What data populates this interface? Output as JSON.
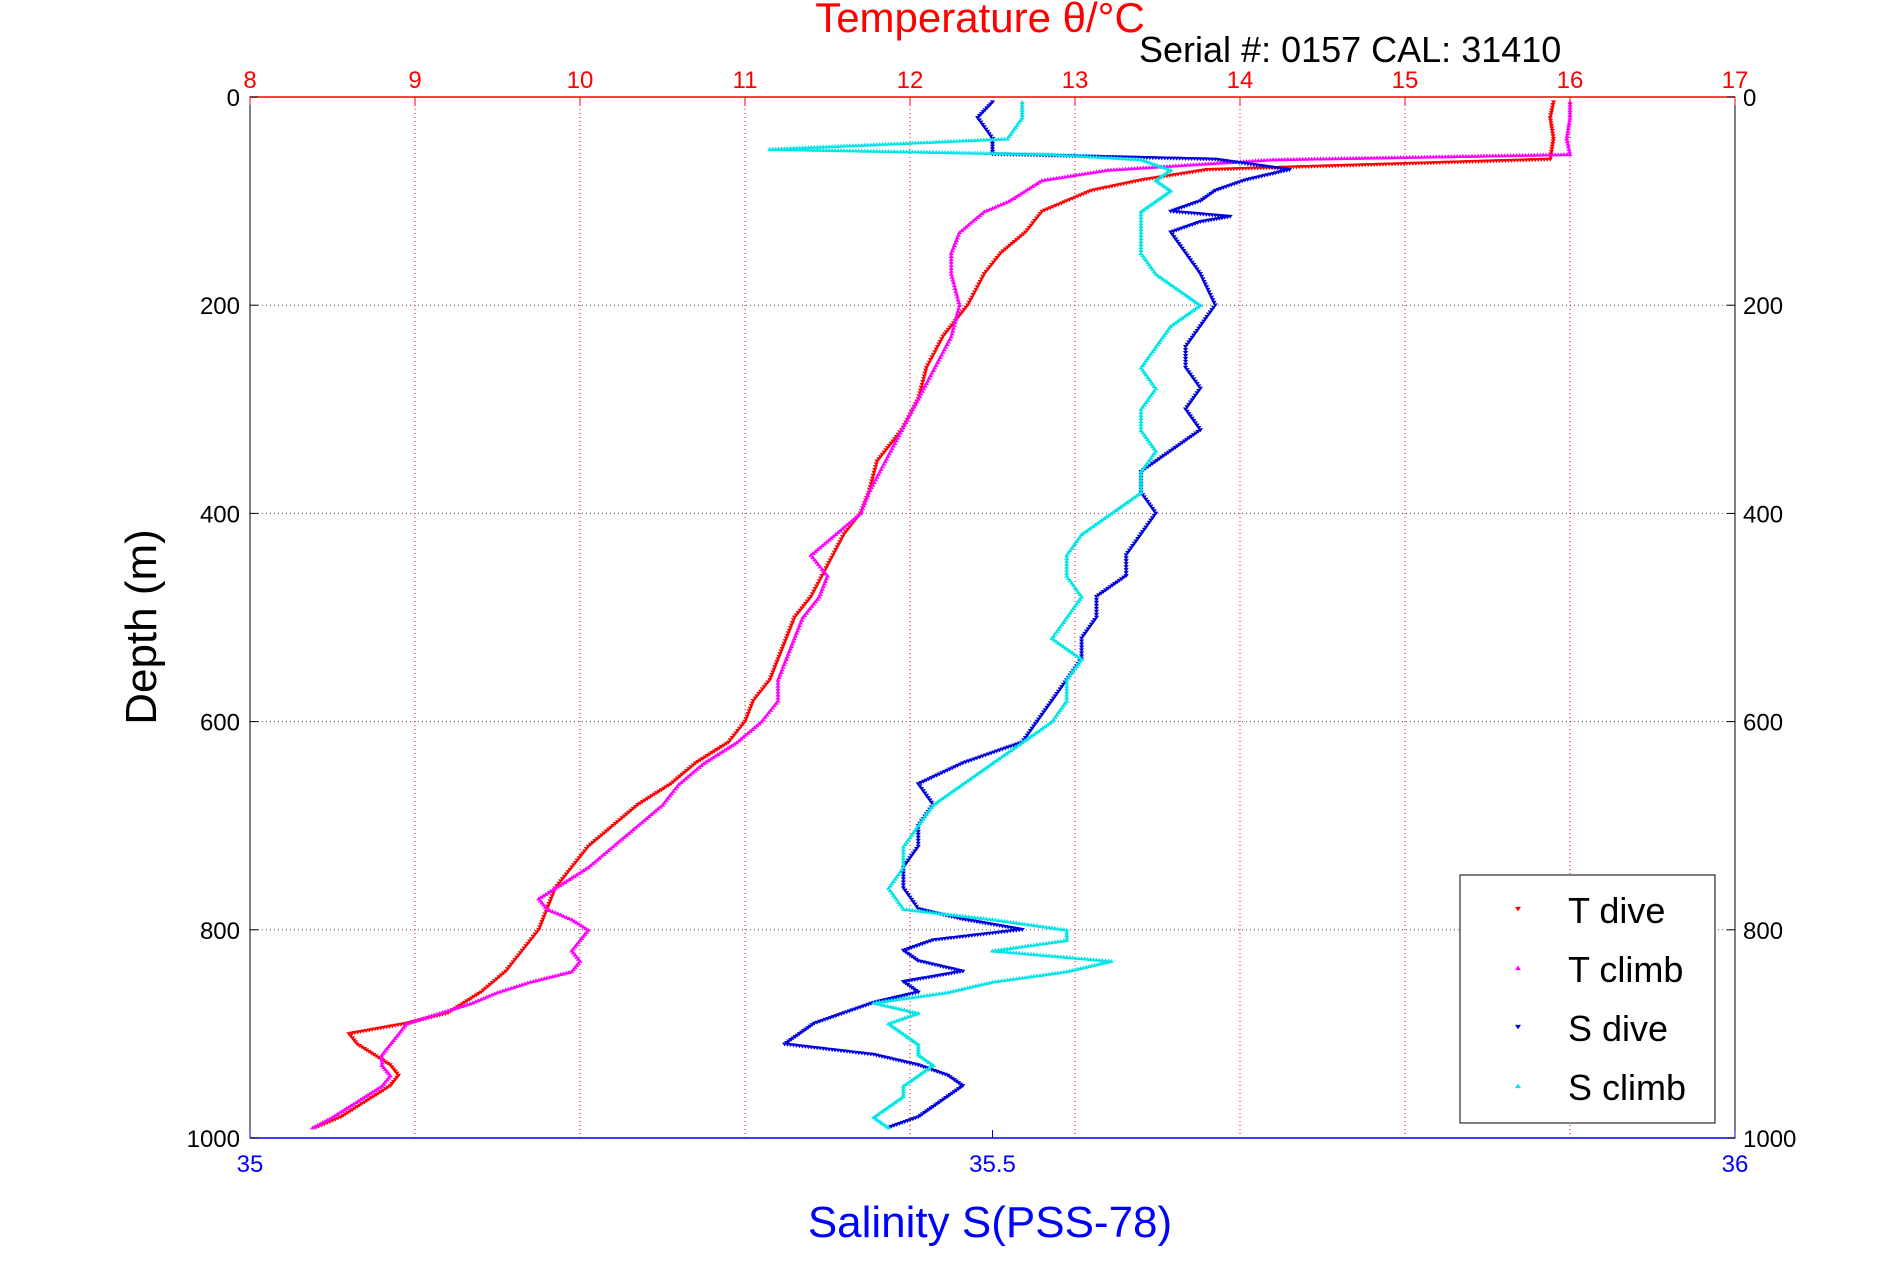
{
  "chart_data": {
    "type": "scatter",
    "title": "Temperature θ/°C",
    "annotation": "Serial #: 0157  CAL: 31410",
    "ylabel": "Depth (m)",
    "xlabel": "Salinity S(PSS-78)",
    "top_axis": {
      "label": "Temperature θ/°C",
      "range": [
        8,
        17
      ],
      "ticks": [
        "8",
        "9",
        "10",
        "11",
        "12",
        "13",
        "14",
        "15",
        "16",
        "17"
      ],
      "color": "#ff0000"
    },
    "bottom_axis": {
      "label": "Salinity S(PSS-78)",
      "range": [
        35,
        36
      ],
      "ticks": [
        "35",
        "35.5",
        "36"
      ],
      "color": "#0000ff"
    },
    "y_axis": {
      "range": [
        0,
        1000
      ],
      "reversed": true,
      "ticks": [
        "0",
        "200",
        "400",
        "600",
        "800",
        "1000"
      ]
    },
    "grid": true,
    "legend_position": "bottom-right",
    "series": [
      {
        "name": "T dive",
        "axis": "temperature",
        "color": "#ff0000",
        "marker": "triangle-down",
        "depth": [
          5,
          20,
          40,
          60,
          70,
          80,
          90,
          100,
          110,
          130,
          150,
          170,
          200,
          230,
          260,
          290,
          320,
          350,
          380,
          400,
          420,
          450,
          480,
          500,
          520,
          540,
          560,
          580,
          600,
          620,
          640,
          660,
          680,
          700,
          720,
          740,
          760,
          780,
          800,
          820,
          840,
          860,
          880,
          890,
          900,
          910,
          920,
          930,
          940,
          950,
          960,
          970,
          980,
          990
        ],
        "values": [
          15.9,
          15.88,
          15.9,
          15.88,
          13.8,
          13.4,
          13.1,
          12.95,
          12.8,
          12.7,
          12.55,
          12.45,
          12.35,
          12.2,
          12.1,
          12.05,
          11.95,
          11.8,
          11.75,
          11.7,
          11.6,
          11.5,
          11.4,
          11.3,
          11.25,
          11.2,
          11.15,
          11.05,
          11.0,
          10.9,
          10.7,
          10.55,
          10.35,
          10.2,
          10.05,
          9.95,
          9.85,
          9.8,
          9.75,
          9.65,
          9.55,
          9.4,
          9.2,
          8.95,
          8.6,
          8.65,
          8.75,
          8.85,
          8.9,
          8.85,
          8.75,
          8.65,
          8.55,
          8.4
        ]
      },
      {
        "name": "T climb",
        "axis": "temperature",
        "color": "#ff00ff",
        "marker": "triangle-up",
        "depth": [
          5,
          20,
          40,
          55,
          60,
          65,
          70,
          80,
          90,
          100,
          110,
          130,
          150,
          170,
          200,
          230,
          260,
          290,
          320,
          350,
          380,
          400,
          420,
          440,
          460,
          480,
          500,
          520,
          540,
          560,
          580,
          600,
          620,
          640,
          660,
          680,
          700,
          720,
          740,
          760,
          770,
          780,
          790,
          800,
          810,
          820,
          830,
          840,
          850,
          860,
          870,
          880,
          890,
          900,
          910,
          920,
          930,
          940,
          950,
          960,
          970,
          980,
          990
        ],
        "values": [
          16.0,
          16.0,
          15.98,
          16.0,
          14.2,
          13.7,
          13.2,
          12.8,
          12.7,
          12.6,
          12.45,
          12.3,
          12.25,
          12.25,
          12.3,
          12.25,
          12.15,
          12.05,
          11.95,
          11.85,
          11.75,
          11.7,
          11.55,
          11.4,
          11.5,
          11.45,
          11.35,
          11.3,
          11.25,
          11.2,
          11.2,
          11.1,
          10.95,
          10.75,
          10.6,
          10.5,
          10.35,
          10.2,
          10.05,
          9.85,
          9.75,
          9.8,
          9.95,
          10.05,
          10.0,
          9.95,
          10.0,
          9.95,
          9.7,
          9.5,
          9.35,
          9.15,
          8.95,
          8.9,
          8.85,
          8.8,
          8.8,
          8.85,
          8.8,
          8.7,
          8.6,
          8.5,
          8.38
        ]
      },
      {
        "name": "S dive",
        "axis": "salinity",
        "color": "#0000dd",
        "marker": "triangle-down",
        "depth": [
          5,
          20,
          40,
          55,
          60,
          70,
          80,
          90,
          100,
          110,
          115,
          120,
          130,
          150,
          170,
          200,
          220,
          240,
          260,
          280,
          300,
          320,
          340,
          360,
          380,
          400,
          420,
          440,
          460,
          480,
          500,
          520,
          540,
          560,
          580,
          600,
          620,
          640,
          660,
          680,
          700,
          720,
          740,
          760,
          780,
          790,
          800,
          810,
          820,
          830,
          840,
          850,
          860,
          870,
          880,
          890,
          900,
          910,
          920,
          930,
          940,
          950,
          960,
          970,
          980,
          990
        ],
        "values": [
          35.5,
          35.49,
          35.5,
          35.5,
          35.65,
          35.7,
          35.67,
          35.65,
          35.64,
          35.62,
          35.66,
          35.64,
          35.62,
          35.63,
          35.64,
          35.65,
          35.64,
          35.63,
          35.63,
          35.64,
          35.63,
          35.64,
          35.62,
          35.6,
          35.6,
          35.61,
          35.6,
          35.59,
          35.59,
          35.57,
          35.57,
          35.56,
          35.56,
          35.55,
          35.54,
          35.53,
          35.52,
          35.48,
          35.45,
          35.46,
          35.45,
          35.45,
          35.44,
          35.44,
          35.45,
          35.48,
          35.52,
          35.46,
          35.44,
          35.45,
          35.48,
          35.44,
          35.45,
          35.42,
          35.4,
          35.38,
          35.37,
          35.36,
          35.42,
          35.45,
          35.47,
          35.48,
          35.47,
          35.46,
          35.45,
          35.43
        ]
      },
      {
        "name": "S climb",
        "axis": "salinity",
        "color": "#00e5e5",
        "marker": "triangle-up",
        "depth": [
          5,
          20,
          40,
          50,
          55,
          60,
          70,
          80,
          90,
          100,
          110,
          130,
          150,
          170,
          190,
          200,
          220,
          240,
          260,
          280,
          300,
          320,
          340,
          360,
          380,
          400,
          420,
          440,
          460,
          480,
          500,
          520,
          540,
          560,
          580,
          600,
          620,
          640,
          660,
          680,
          700,
          720,
          740,
          760,
          780,
          790,
          800,
          810,
          820,
          830,
          840,
          850,
          860,
          870,
          880,
          890,
          900,
          910,
          920,
          930,
          940,
          950,
          960,
          970,
          980,
          990
        ],
        "values": [
          35.52,
          35.52,
          35.51,
          35.35,
          35.54,
          35.6,
          35.62,
          35.61,
          35.62,
          35.61,
          35.6,
          35.6,
          35.6,
          35.61,
          35.63,
          35.64,
          35.62,
          35.61,
          35.6,
          35.61,
          35.6,
          35.6,
          35.61,
          35.6,
          35.6,
          35.58,
          35.56,
          35.55,
          35.55,
          35.56,
          35.55,
          35.54,
          35.56,
          35.55,
          35.55,
          35.54,
          35.52,
          35.5,
          35.48,
          35.46,
          35.45,
          35.44,
          35.44,
          35.43,
          35.44,
          35.5,
          35.55,
          35.55,
          35.5,
          35.58,
          35.55,
          35.5,
          35.47,
          35.42,
          35.45,
          35.43,
          35.44,
          35.45,
          35.45,
          35.46,
          35.45,
          35.44,
          35.44,
          35.43,
          35.42,
          35.43
        ]
      }
    ]
  }
}
